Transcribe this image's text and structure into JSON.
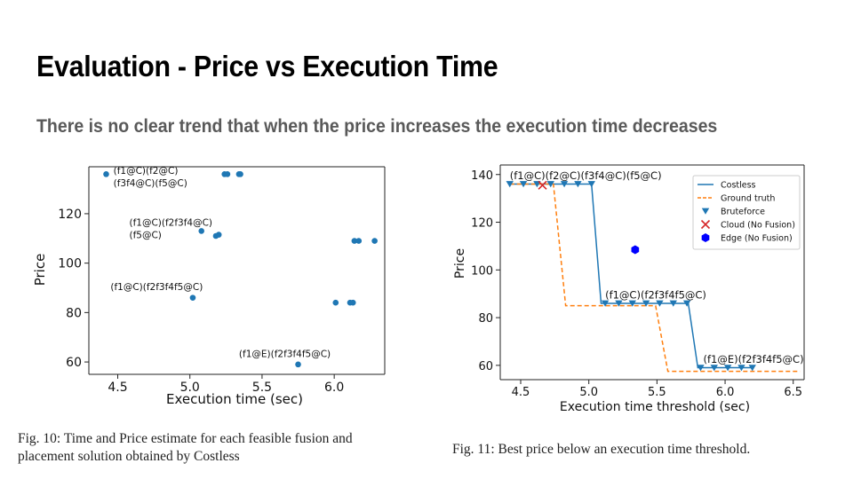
{
  "slide": {
    "title": "Evaluation - Price vs Execution Time",
    "subtitle": "There is no clear trend that when the price increases the execution time decreases"
  },
  "captions": {
    "fig10": "Fig. 10: Time and Price estimate for each feasible fusion and placement solution obtained by Costless",
    "fig11": "Fig. 11: Best price below an execution time threshold."
  },
  "colors": {
    "blue": "#1f77b4",
    "orange": "#ff7f0e",
    "red": "#d62728",
    "edge": "#0000ff"
  },
  "chart_data": [
    {
      "type": "scatter",
      "title": "",
      "xlabel": "Execution time (sec)",
      "ylabel": "Price",
      "xlim": [
        4.3,
        6.35
      ],
      "ylim": [
        55,
        139
      ],
      "xticks": [
        "4.5",
        "5.0",
        "5.5",
        "6.0"
      ],
      "xtick_values": [
        4.5,
        5.0,
        5.5,
        6.0
      ],
      "yticks": [
        "60",
        "80",
        "100",
        "120"
      ],
      "ytick_values": [
        60,
        80,
        100,
        120
      ],
      "points": [
        {
          "x": 4.42,
          "y": 136
        },
        {
          "x": 5.24,
          "y": 136
        },
        {
          "x": 5.26,
          "y": 136
        },
        {
          "x": 5.34,
          "y": 136
        },
        {
          "x": 5.35,
          "y": 136
        },
        {
          "x": 5.08,
          "y": 113
        },
        {
          "x": 5.18,
          "y": 111
        },
        {
          "x": 5.2,
          "y": 111.5
        },
        {
          "x": 6.14,
          "y": 109
        },
        {
          "x": 6.17,
          "y": 109
        },
        {
          "x": 6.28,
          "y": 109
        },
        {
          "x": 5.02,
          "y": 86
        },
        {
          "x": 6.01,
          "y": 84
        },
        {
          "x": 6.11,
          "y": 84
        },
        {
          "x": 6.13,
          "y": 84
        },
        {
          "x": 5.75,
          "y": 59
        }
      ],
      "annotations": [
        {
          "text": "(f1@C)(f2@C)",
          "x": 4.47,
          "y": 137.5
        },
        {
          "text": "(f3f4@C)(f5@C)",
          "x": 4.47,
          "y": 132.5
        },
        {
          "text": "(f1@C)(f2f3f4@C)",
          "x": 4.58,
          "y": 116.5
        },
        {
          "text": "(f5@C)",
          "x": 4.58,
          "y": 111.5
        },
        {
          "text": "(f1@C)(f2f3f4f5@C)",
          "x": 4.45,
          "y": 90.5
        },
        {
          "text": "(f1@E)(f2f3f4f5@C)",
          "x": 5.34,
          "y": 63.5
        }
      ]
    },
    {
      "type": "line",
      "title": "",
      "xlabel": "Execution time threshold (sec)",
      "ylabel": "Price",
      "xlim": [
        4.35,
        6.58
      ],
      "ylim": [
        54,
        144
      ],
      "xticks": [
        "4.5",
        "5.0",
        "5.5",
        "6.0",
        "6.5"
      ],
      "xtick_values": [
        4.5,
        5.0,
        5.5,
        6.0,
        6.5
      ],
      "yticks": [
        "60",
        "80",
        "100",
        "120",
        "140"
      ],
      "ytick_values": [
        60,
        80,
        100,
        120,
        140
      ],
      "series": [
        {
          "name": "Costless",
          "style": "solid",
          "color": "#1f77b4",
          "x": [
            4.42,
            5.02,
            5.09,
            5.73,
            5.8,
            6.2
          ],
          "y": [
            136,
            136,
            86,
            86,
            59,
            59
          ]
        },
        {
          "name": "Ground truth",
          "style": "dashed",
          "color": "#ff7f0e",
          "x": [
            4.42,
            4.74,
            4.83,
            5.49,
            5.58,
            6.55
          ],
          "y": [
            136,
            136,
            85,
            85,
            57.5,
            57.5
          ]
        },
        {
          "name": "Bruteforce",
          "style": "triangle",
          "color": "#1f77b4",
          "x": [
            4.42,
            4.52,
            4.62,
            4.72,
            4.82,
            4.92,
            5.02,
            5.12,
            5.22,
            5.32,
            5.42,
            5.52,
            5.62,
            5.72,
            5.82,
            5.92,
            6.02,
            6.12,
            6.2
          ],
          "y": [
            136,
            136,
            136,
            136,
            136,
            136,
            136,
            86,
            86,
            86,
            86,
            86,
            86,
            86,
            59,
            59,
            59,
            59,
            59
          ]
        },
        {
          "name": "Cloud (No Fusion)",
          "style": "x",
          "color": "#d62728",
          "x": [
            4.66
          ],
          "y": [
            135.5
          ]
        },
        {
          "name": "Edge (No Fusion)",
          "style": "hexagon",
          "color": "#0000ff",
          "x": [
            5.34
          ],
          "y": [
            108.5
          ]
        }
      ],
      "annotations": [
        {
          "text": "(f1@C)(f2@C)(f3f4@C)(f5@C)",
          "x": 4.42,
          "y": 139.5
        },
        {
          "text": "(f1@C)(f2f3f4f5@C)",
          "x": 5.12,
          "y": 89.5
        },
        {
          "text": "(f1@E)(f2f3f4f5@C)",
          "x": 5.84,
          "y": 62.5
        }
      ],
      "legend": "top-right"
    }
  ]
}
